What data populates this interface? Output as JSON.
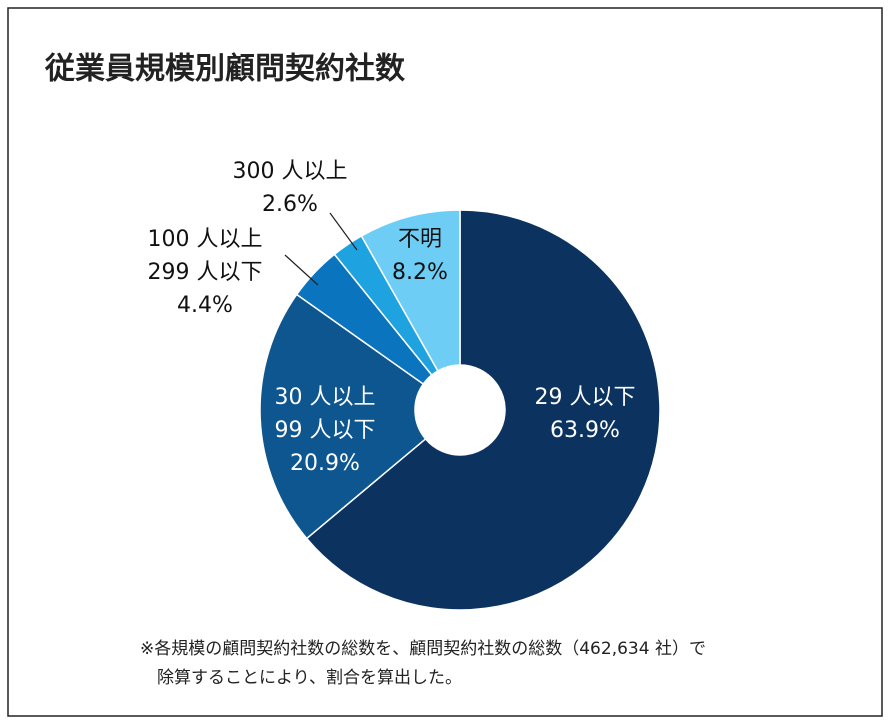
{
  "chart_data": {
    "type": "donut",
    "title": "従業員規模別顧問契約社数",
    "categories": [
      [
        "29 人以下"
      ],
      [
        "30 人以上",
        "99 人以下"
      ],
      [
        "100 人以上",
        "299 人以下"
      ],
      [
        "300 人以上"
      ],
      [
        "不明"
      ]
    ],
    "values": [
      63.9,
      20.9,
      4.4,
      2.6,
      8.2
    ],
    "value_labels": [
      "63.9%",
      "20.9%",
      "4.4%",
      "2.6%",
      "8.2%"
    ],
    "colors": [
      "#0c3360",
      "#0e5690",
      "#0a74bf",
      "#1fa2e0",
      "#6dcdf4"
    ],
    "note": [
      "※各規模の顧問契約社数の総数を、顧問契約社数の総数（462,634 社）で",
      "除算することにより、割合を算出した。"
    ]
  }
}
